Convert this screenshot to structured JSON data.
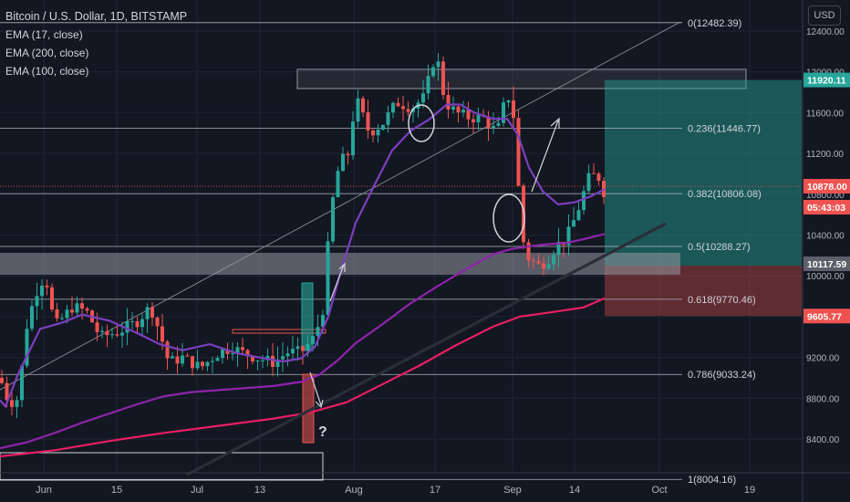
{
  "header": {
    "symbol": "Bitcoin / U.S. Dollar, 1D, BITSTAMP",
    "indicators": [
      "EMA (17, close)",
      "EMA (200, close)",
      "EMA (100, close)"
    ],
    "currency": "USD"
  },
  "chart_data": {
    "type": "candlestick",
    "title": "Bitcoin / U.S. Dollar, 1D, BITSTAMP",
    "ylim": [
      8200,
      12600
    ],
    "y_ticks": [
      "12400.00",
      "12000.00",
      "11600.00",
      "11200.00",
      "10800.00",
      "10400.00",
      "10000.00",
      "9600.00",
      "9200.00",
      "8800.00",
      "8400.00"
    ],
    "x_ticks": [
      "Jun",
      "15",
      "Jul",
      "13",
      "Aug",
      "17",
      "Sep",
      "14",
      "Oct",
      "19"
    ],
    "price_labels": [
      {
        "text": "11920.11",
        "value": 11920.11,
        "color": "#26a69a"
      },
      {
        "text": "10878.00",
        "value": 10878.0,
        "color": "#ef5350"
      },
      {
        "text": "05:43:03",
        "value": 10743,
        "color": "#ef5350"
      },
      {
        "text": "10117.59",
        "value": 10117.59,
        "color": "#5d606b"
      },
      {
        "text": "9605.77",
        "value": 9605.77,
        "color": "#ef5350"
      }
    ],
    "fibonacci": [
      {
        "label": "0(12482.39)",
        "value": 12482.39
      },
      {
        "label": "0.236(11446.77)",
        "value": 11446.77
      },
      {
        "label": "0.382(10806.08)",
        "value": 10806.08
      },
      {
        "label": "0.5(10288.27)",
        "value": 10288.27
      },
      {
        "label": "0.618(9770.46)",
        "value": 9770.46
      },
      {
        "label": "0.786(9033.24)",
        "value": 9033.24
      },
      {
        "label": "1(8004.16)",
        "value": 8004.16
      }
    ],
    "annotations": [
      "?"
    ],
    "colors": {
      "up": "#26a69a",
      "down": "#ef5350",
      "ema17": "#7b3fbf",
      "ema100": "#8e24aa",
      "ema200": "#e91e63"
    },
    "series": [
      {
        "name": "EMA (17, close)",
        "values": [
          [
            0,
            8780
          ],
          [
            6,
            8720
          ],
          [
            20,
            9040
          ],
          [
            44,
            9480
          ],
          [
            68,
            9540
          ],
          [
            90,
            9620
          ],
          [
            120,
            9560
          ],
          [
            150,
            9440
          ],
          [
            175,
            9330
          ],
          [
            200,
            9270
          ],
          [
            230,
            9330
          ],
          [
            260,
            9240
          ],
          [
            290,
            9190
          ],
          [
            310,
            9160
          ],
          [
            330,
            9190
          ],
          [
            345,
            9300
          ],
          [
            360,
            9600
          ],
          [
            372,
            9990
          ],
          [
            390,
            10520
          ],
          [
            410,
            10880
          ],
          [
            430,
            11230
          ],
          [
            450,
            11420
          ],
          [
            470,
            11530
          ],
          [
            490,
            11680
          ],
          [
            505,
            11680
          ],
          [
            520,
            11600
          ],
          [
            540,
            11540
          ],
          [
            556,
            11540
          ],
          [
            568,
            11380
          ],
          [
            580,
            11060
          ],
          [
            595,
            10830
          ],
          [
            612,
            10700
          ],
          [
            630,
            10720
          ],
          [
            648,
            10780
          ],
          [
            663,
            10850
          ]
        ]
      },
      {
        "name": "EMA (100, close)",
        "values": [
          [
            0,
            8310
          ],
          [
            30,
            8370
          ],
          [
            60,
            8460
          ],
          [
            90,
            8560
          ],
          [
            120,
            8650
          ],
          [
            150,
            8740
          ],
          [
            180,
            8820
          ],
          [
            210,
            8860
          ],
          [
            240,
            8880
          ],
          [
            270,
            8900
          ],
          [
            300,
            8920
          ],
          [
            330,
            8960
          ],
          [
            350,
            9030
          ],
          [
            370,
            9170
          ],
          [
            390,
            9340
          ],
          [
            420,
            9530
          ],
          [
            450,
            9730
          ],
          [
            480,
            9900
          ],
          [
            510,
            10060
          ],
          [
            540,
            10210
          ],
          [
            560,
            10260
          ],
          [
            580,
            10290
          ],
          [
            600,
            10310
          ],
          [
            620,
            10320
          ],
          [
            640,
            10360
          ],
          [
            663,
            10410
          ]
        ]
      },
      {
        "name": "EMA (200, close)",
        "values": [
          [
            0,
            8230
          ],
          [
            60,
            8290
          ],
          [
            120,
            8380
          ],
          [
            180,
            8460
          ],
          [
            240,
            8530
          ],
          [
            300,
            8600
          ],
          [
            340,
            8660
          ],
          [
            380,
            8760
          ],
          [
            420,
            8940
          ],
          [
            460,
            9120
          ],
          [
            500,
            9320
          ],
          [
            540,
            9500
          ],
          [
            570,
            9600
          ],
          [
            610,
            9650
          ],
          [
            640,
            9690
          ],
          [
            663,
            9780
          ]
        ]
      }
    ]
  }
}
